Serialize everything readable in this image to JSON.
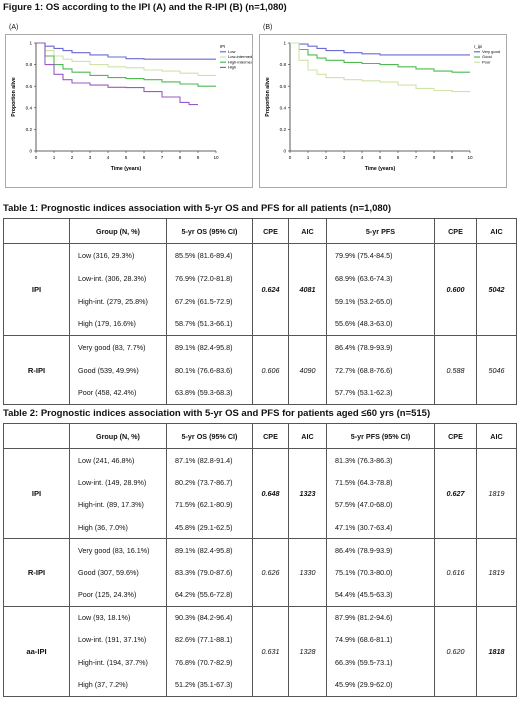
{
  "figure": {
    "title": "Figure 1: OS according to the IPI (A) and the R-IPI (B) (n=1,080)",
    "panels": [
      {
        "label": "(A)",
        "legend_title": "IPI",
        "ylabel": "Proportion alive",
        "xlabel": "Time (years)",
        "series": [
          {
            "name": "Low",
            "color": "#6a6ad2"
          },
          {
            "name": "Low-intermediate",
            "color": "#cfe3a8"
          },
          {
            "name": "High-intermediate",
            "color": "#4fba50"
          },
          {
            "name": "High",
            "color": "#9b59c6"
          }
        ]
      },
      {
        "label": "(B)",
        "legend_title": "r_ipi",
        "ylabel": "Proportion alive",
        "xlabel": "Time (years)",
        "series": [
          {
            "name": "Very good",
            "color": "#6a6ad2"
          },
          {
            "name": "Good",
            "color": "#4fba50"
          },
          {
            "name": "Poor",
            "color": "#cfe3a8"
          }
        ]
      }
    ]
  },
  "chart_data": [
    {
      "type": "line",
      "title": "(A)",
      "xlabel": "Time (years)",
      "ylabel": "Proportion alive",
      "xlim": [
        0,
        10
      ],
      "ylim": [
        0,
        1
      ],
      "x_ticks": [
        "0",
        "1",
        "2",
        "3",
        "4",
        "5",
        "6",
        "7",
        "8",
        "9",
        "10"
      ],
      "y_ticks": [
        "0",
        "0.2",
        "0.4",
        "0.6",
        "0.8",
        "1"
      ],
      "legend": "top-right",
      "series": [
        {
          "name": "Low",
          "x": [
            0,
            0.5,
            1,
            1.5,
            2,
            3,
            4,
            5,
            6,
            7,
            8,
            9,
            10
          ],
          "y": [
            1,
            0.97,
            0.95,
            0.93,
            0.91,
            0.89,
            0.87,
            0.855,
            0.85,
            0.85,
            0.85,
            0.85,
            0.85
          ]
        },
        {
          "name": "Low-intermediate",
          "x": [
            0,
            0.5,
            1,
            1.5,
            2,
            3,
            4,
            5,
            6,
            7,
            8,
            9,
            10
          ],
          "y": [
            1,
            0.93,
            0.88,
            0.85,
            0.83,
            0.8,
            0.78,
            0.77,
            0.75,
            0.74,
            0.72,
            0.7,
            0.7
          ]
        },
        {
          "name": "High-intermediate",
          "x": [
            0,
            0.5,
            1,
            1.5,
            2,
            3,
            4,
            5,
            6,
            7,
            8,
            9,
            10
          ],
          "y": [
            1,
            0.88,
            0.8,
            0.76,
            0.73,
            0.7,
            0.68,
            0.67,
            0.66,
            0.64,
            0.62,
            0.6,
            0.6
          ]
        },
        {
          "name": "High",
          "x": [
            0,
            0.5,
            1,
            1.5,
            2,
            3,
            4,
            5,
            6,
            7,
            8,
            8.5,
            9
          ],
          "y": [
            1,
            0.8,
            0.71,
            0.66,
            0.63,
            0.61,
            0.59,
            0.587,
            0.55,
            0.5,
            0.45,
            0.43,
            0.43
          ]
        }
      ]
    },
    {
      "type": "line",
      "title": "(B)",
      "xlabel": "Time (years)",
      "ylabel": "Proportion alive",
      "xlim": [
        0,
        10
      ],
      "ylim": [
        0,
        1
      ],
      "x_ticks": [
        "0",
        "1",
        "2",
        "3",
        "4",
        "5",
        "6",
        "7",
        "8",
        "9",
        "10"
      ],
      "y_ticks": [
        "0",
        "0.2",
        "0.4",
        "0.6",
        "0.8",
        "1"
      ],
      "legend": "top-right",
      "series": [
        {
          "name": "Very good",
          "x": [
            0,
            0.5,
            1,
            1.5,
            2,
            3,
            4,
            5,
            6,
            7,
            8,
            9,
            10
          ],
          "y": [
            1,
            0.99,
            0.97,
            0.95,
            0.93,
            0.91,
            0.9,
            0.89,
            0.89,
            0.89,
            0.89,
            0.89,
            0.89
          ]
        },
        {
          "name": "Good",
          "x": [
            0,
            0.5,
            1,
            1.5,
            2,
            3,
            4,
            5,
            6,
            7,
            8,
            9,
            10
          ],
          "y": [
            1,
            0.94,
            0.89,
            0.86,
            0.84,
            0.82,
            0.81,
            0.8,
            0.78,
            0.76,
            0.74,
            0.73,
            0.73
          ]
        },
        {
          "name": "Poor",
          "x": [
            0,
            0.5,
            1,
            1.5,
            2,
            3,
            4,
            5,
            6,
            7,
            8,
            9,
            10
          ],
          "y": [
            1,
            0.84,
            0.75,
            0.71,
            0.68,
            0.66,
            0.65,
            0.638,
            0.61,
            0.58,
            0.56,
            0.55,
            0.55
          ]
        }
      ]
    }
  ],
  "table1": {
    "title": "Table 1: Prognostic indices association with 5-yr OS and PFS for all patients (n=1,080)",
    "headers": [
      "",
      "Group (N, %)",
      "5-yr OS (95% CI)",
      "CPE",
      "AIC",
      "5-yr PFS",
      "CPE",
      "AIC"
    ],
    "blocks": [
      {
        "index": "IPI",
        "cpe_os": "0.624",
        "aic_os": "4081",
        "cpe_pfs": "0.600",
        "aic_pfs": "5042",
        "bold_os": true,
        "bold_pfs": true,
        "rows": [
          [
            "Low (316, 29.3%)",
            "85.5% (81.6-89.4)",
            "79.9% (75.4-84.5)"
          ],
          [
            "Low-int. (306, 28.3%)",
            "76.9% (72.0-81.8)",
            "68.9% (63.6-74.3)"
          ],
          [
            "High-int. (279, 25.8%)",
            "67.2% (61.5-72.9)",
            "59.1% (53.2-65.0)"
          ],
          [
            "High (179, 16.6%)",
            "58.7% (51.3-66.1)",
            "55.6% (48.3-63.0)"
          ]
        ]
      },
      {
        "index": "R-IPI",
        "cpe_os": "0.606",
        "aic_os": "4090",
        "cpe_pfs": "0.588",
        "aic_pfs": "5046",
        "bold_os": false,
        "bold_pfs": false,
        "rows": [
          [
            "Very good (83, 7.7%)",
            "89.1% (82.4-95.8)",
            "86.4% (78.9-93.9)"
          ],
          [
            "Good (539, 49.9%)",
            "80.1% (76.6-83.6)",
            "72.7% (68.8-76.6)"
          ],
          [
            "Poor (458, 42.4%)",
            "63.8% (59.3-68.3)",
            "57.7% (53.1-62.3)"
          ]
        ]
      }
    ]
  },
  "table2": {
    "title": "Table 2: Prognostic indices association with 5-yr OS and PFS for patients aged ≤60 yrs (n=515)",
    "headers": [
      "",
      "Group (N, %)",
      "5-yr OS (95% CI)",
      "CPE",
      "AIC",
      "5-yr PFS (95% CI)",
      "CPE",
      "AIC"
    ],
    "blocks": [
      {
        "index": "IPI",
        "cpe_os": "0.648",
        "aic_os": "1323",
        "cpe_pfs": "0.627",
        "aic_pfs": "1819",
        "bold_os": true,
        "bold_pfs": "cpe",
        "rows": [
          [
            "Low (241, 46.8%)",
            "87.1% (82.8-91.4)",
            "81.3% (76.3-86.3)"
          ],
          [
            "Low-int. (149, 28.9%)",
            "80.2% (73.7-86.7)",
            "71.5% (64.3-78.8)"
          ],
          [
            "High-int. (89, 17.3%)",
            "71.5% (62.1-80.9)",
            "57.5% (47.0-68.0)"
          ],
          [
            "High (36, 7.0%)",
            "45.8% (29.1-62.5)",
            "47.1% (30.7-63.4)"
          ]
        ]
      },
      {
        "index": "R-IPI",
        "cpe_os": "0.626",
        "aic_os": "1330",
        "cpe_pfs": "0.616",
        "aic_pfs": "1819",
        "bold_os": false,
        "bold_pfs": false,
        "rows": [
          [
            "Very good (83, 16.1%)",
            "89.1% (82.4-95.8)",
            "86.4% (78.9-93.9)"
          ],
          [
            "Good (307, 59.6%)",
            "83.3% (79.0-87.6)",
            "75.1% (70.3-80.0)"
          ],
          [
            "Poor (125, 24.3%)",
            "64.2% (55.6-72.8)",
            "54.4% (45.5-63.3)"
          ]
        ]
      },
      {
        "index": "aa-IPI",
        "cpe_os": "0.631",
        "aic_os": "1328",
        "cpe_pfs": "0.620",
        "aic_pfs": "1818",
        "bold_os": false,
        "bold_pfs": "aic",
        "rows": [
          [
            "Low (93, 18.1%)",
            "90.3% (84.2-96.4)",
            "87.9% (81.2-94.6)"
          ],
          [
            "Low-int. (191, 37.1%)",
            "82.6% (77.1-88.1)",
            "74.9% (68.6-81.1)"
          ],
          [
            "High-int. (194, 37.7%)",
            "76.8% (70.7-82.9)",
            "66.3% (59.5-73.1)"
          ],
          [
            "High (37, 7.2%)",
            "51.2% (35.1-67.3)",
            "45.9% (29.9-62.0)"
          ]
        ]
      }
    ]
  }
}
